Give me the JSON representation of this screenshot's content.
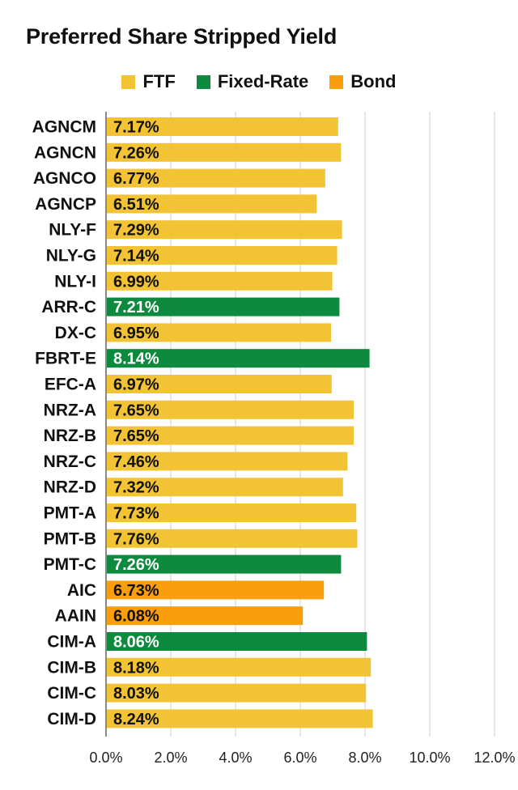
{
  "chart_data": {
    "type": "bar",
    "orientation": "horizontal",
    "title": "Preferred Share Stripped Yield",
    "legend": [
      {
        "name": "FTF",
        "color": "#F2C335"
      },
      {
        "name": "Fixed-Rate",
        "color": "#0E8A3E"
      },
      {
        "name": "Bond",
        "color": "#FA9E0E"
      }
    ],
    "legend_position": "top",
    "categories": [
      "AGNCM",
      "AGNCN",
      "AGNCO",
      "AGNCP",
      "NLY-F",
      "NLY-G",
      "NLY-I",
      "ARR-C",
      "DX-C",
      "FBRT-E",
      "EFC-A",
      "NRZ-A",
      "NRZ-B",
      "NRZ-C",
      "NRZ-D",
      "PMT-A",
      "PMT-B",
      "PMT-C",
      "AIC",
      "AAIN",
      "CIM-A",
      "CIM-B",
      "CIM-C",
      "CIM-D"
    ],
    "values": [
      7.17,
      7.26,
      6.77,
      6.51,
      7.29,
      7.14,
      6.99,
      7.21,
      6.95,
      8.14,
      6.97,
      7.65,
      7.65,
      7.46,
      7.32,
      7.73,
      7.76,
      7.26,
      6.73,
      6.08,
      8.06,
      8.18,
      8.03,
      8.24
    ],
    "value_labels": [
      "7.17%",
      "7.26%",
      "6.77%",
      "6.51%",
      "7.29%",
      "7.14%",
      "6.99%",
      "7.21%",
      "6.95%",
      "8.14%",
      "6.97%",
      "7.65%",
      "7.65%",
      "7.46%",
      "7.32%",
      "7.73%",
      "7.76%",
      "7.26%",
      "6.73%",
      "6.08%",
      "8.06%",
      "8.18%",
      "8.03%",
      "8.24%"
    ],
    "groups": [
      "FTF",
      "FTF",
      "FTF",
      "FTF",
      "FTF",
      "FTF",
      "FTF",
      "Fixed-Rate",
      "FTF",
      "Fixed-Rate",
      "FTF",
      "FTF",
      "FTF",
      "FTF",
      "FTF",
      "FTF",
      "FTF",
      "Fixed-Rate",
      "Bond",
      "Bond",
      "Fixed-Rate",
      "FTF",
      "FTF",
      "FTF"
    ],
    "xlim": [
      0,
      12
    ],
    "xticks": [
      0,
      2,
      4,
      6,
      8,
      10,
      12
    ],
    "xtick_labels": [
      "0.0%",
      "2.0%",
      "4.0%",
      "6.0%",
      "8.0%",
      "10.0%",
      "12.0%"
    ],
    "grid": "vertical",
    "label_colors": {
      "FTF": "#111111",
      "Fixed-Rate": "#ffffff",
      "Bond": "#111111"
    },
    "xlabel": "",
    "ylabel": ""
  }
}
